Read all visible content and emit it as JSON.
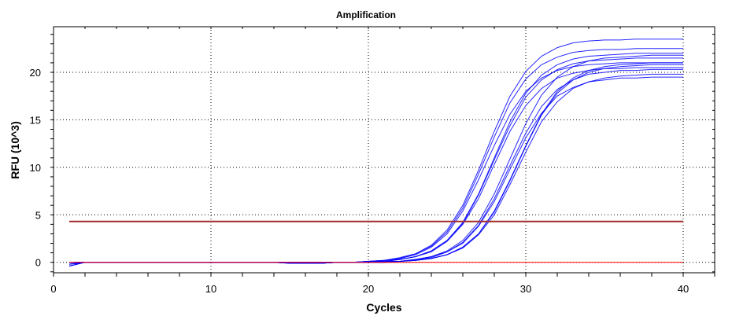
{
  "chart_data": {
    "type": "line",
    "title": "Amplification",
    "xlabel": "Cycles",
    "ylabel": "RFU (10^3)",
    "xlim": [
      0,
      42
    ],
    "ylim": [
      -1.1,
      24.8
    ],
    "xticks": [
      0,
      10,
      20,
      30,
      40
    ],
    "yticks": [
      0,
      5,
      10,
      15,
      20
    ],
    "grid": true,
    "legend": "none",
    "series_color": "#0000ff",
    "threshold": {
      "value": 4.3,
      "color": "#a52a2a"
    },
    "baseline": {
      "value": 0,
      "color": "#ff0000"
    },
    "x": [
      1,
      2,
      3,
      4,
      5,
      6,
      7,
      8,
      9,
      10,
      11,
      12,
      13,
      14,
      15,
      16,
      17,
      18,
      19,
      20,
      21,
      22,
      23,
      24,
      25,
      26,
      27,
      28,
      29,
      30,
      31,
      32,
      33,
      34,
      35,
      36,
      37,
      38,
      39,
      40
    ],
    "series": [
      {
        "values": [
          -0.4,
          0,
          0,
          0,
          0,
          0,
          0,
          0,
          0,
          0,
          0,
          0,
          0,
          0,
          -0.1,
          -0.1,
          -0.1,
          0,
          0,
          0.1,
          0.2,
          0.5,
          0.9,
          1.8,
          3.4,
          6.0,
          9.7,
          13.8,
          17.5,
          20.1,
          21.7,
          22.6,
          23.1,
          23.3,
          23.4,
          23.4,
          23.5,
          23.5,
          23.5,
          23.5
        ]
      },
      {
        "values": [
          0,
          0,
          0,
          0,
          0,
          0,
          0,
          0,
          0,
          0,
          0,
          0,
          0,
          0,
          0,
          0,
          0,
          0,
          0,
          0.1,
          0.2,
          0.4,
          0.9,
          1.7,
          3.2,
          5.7,
          9.3,
          13.2,
          16.8,
          19.3,
          20.8,
          21.6,
          22.1,
          22.3,
          22.4,
          22.4,
          22.5,
          22.5,
          22.5,
          22.5
        ]
      },
      {
        "values": [
          -0.2,
          0,
          0,
          0,
          0,
          0,
          0,
          0,
          0,
          0,
          0,
          0,
          0,
          0,
          0,
          -0.1,
          -0.1,
          0,
          0,
          0.1,
          0.1,
          0.3,
          0.6,
          1.2,
          2.3,
          4.1,
          7.1,
          10.8,
          14.4,
          17.4,
          19.2,
          20.3,
          20.9,
          21.2,
          21.3,
          21.4,
          21.5,
          21.5,
          21.5,
          21.5
        ]
      },
      {
        "values": [
          -0.4,
          0,
          0,
          0,
          0,
          0,
          0,
          0,
          0,
          0,
          0,
          0,
          0,
          0,
          -0.1,
          -0.1,
          -0.1,
          0,
          0,
          0.1,
          0.2,
          0.4,
          0.8,
          1.6,
          3.0,
          5.4,
          8.7,
          12.3,
          15.6,
          18.0,
          19.4,
          20.2,
          20.6,
          20.8,
          20.9,
          21.0,
          21.0,
          21.0,
          21.0,
          21.0
        ]
      },
      {
        "values": [
          0,
          0,
          0,
          0,
          0,
          0,
          0,
          0,
          0,
          0,
          0,
          0,
          0,
          0,
          0,
          0,
          0,
          0,
          0,
          0.1,
          0.1,
          0.3,
          0.6,
          1.1,
          2.2,
          4.0,
          6.7,
          10.3,
          13.8,
          16.5,
          18.3,
          19.4,
          19.9,
          20.2,
          20.4,
          20.4,
          20.5,
          20.5,
          20.5,
          20.5
        ]
      },
      {
        "values": [
          -0.2,
          0,
          0,
          0,
          0,
          0,
          0,
          0,
          0,
          0,
          0,
          0,
          0,
          0,
          0,
          -0.1,
          -0.1,
          0,
          0,
          0.1,
          0.1,
          0.3,
          0.6,
          1.2,
          2.3,
          4.2,
          7.2,
          11.0,
          14.8,
          17.8,
          19.7,
          20.8,
          21.4,
          21.7,
          21.8,
          21.9,
          22.0,
          22.0,
          22.0,
          22.0
        ]
      },
      {
        "values": [
          -0.4,
          0,
          0,
          0,
          0,
          0,
          0,
          0,
          0,
          0,
          0,
          0,
          0,
          0,
          -0.1,
          -0.1,
          -0.1,
          0,
          0,
          0,
          0.1,
          0.1,
          0.3,
          0.6,
          1.2,
          2.3,
          4.2,
          7.2,
          10.9,
          14.6,
          17.6,
          19.5,
          20.6,
          21.2,
          21.5,
          21.6,
          21.7,
          21.8,
          21.8,
          21.8
        ]
      },
      {
        "values": [
          0,
          0,
          0,
          0,
          0,
          0,
          0,
          0,
          0,
          0,
          0,
          0,
          0,
          0,
          0,
          0,
          0,
          0,
          0,
          0,
          0,
          0.1,
          0.2,
          0.4,
          0.8,
          1.6,
          3.0,
          5.4,
          8.7,
          12.3,
          15.6,
          18.0,
          19.4,
          20.2,
          20.6,
          20.8,
          20.9,
          21.0,
          21.0,
          21.0
        ]
      },
      {
        "values": [
          -0.2,
          0,
          0,
          0,
          0,
          0,
          0,
          0,
          0,
          0,
          0,
          0,
          0,
          0,
          0,
          -0.1,
          -0.1,
          0,
          0,
          0,
          0.1,
          0.1,
          0.3,
          0.6,
          1.1,
          2.1,
          3.9,
          6.7,
          10.2,
          13.6,
          16.4,
          18.2,
          19.2,
          19.8,
          20.0,
          20.2,
          20.2,
          20.3,
          20.3,
          20.3
        ]
      },
      {
        "values": [
          -0.4,
          0,
          0,
          0,
          0,
          0,
          0,
          0,
          0,
          0,
          0,
          0,
          0,
          0,
          -0.1,
          -0.1,
          -0.1,
          0,
          0,
          0,
          0,
          0.1,
          0.2,
          0.4,
          0.8,
          1.5,
          2.9,
          5.0,
          8.2,
          11.6,
          14.8,
          16.9,
          18.3,
          19.0,
          19.4,
          19.6,
          19.7,
          19.8,
          19.8,
          19.8
        ]
      },
      {
        "values": [
          0,
          0,
          0,
          0,
          0,
          0,
          0,
          0,
          0,
          0,
          0,
          0,
          0,
          0,
          0,
          0,
          0,
          0,
          0,
          0,
          0.1,
          0.1,
          0.3,
          0.5,
          1.1,
          2.0,
          3.8,
          6.4,
          9.8,
          13.1,
          15.7,
          17.5,
          18.4,
          19.0,
          19.2,
          19.4,
          19.4,
          19.5,
          19.5,
          19.5
        ]
      },
      {
        "values": [
          -0.2,
          0,
          0,
          0,
          0,
          0,
          0,
          0,
          0,
          0,
          0,
          0,
          0,
          0,
          0,
          -0.1,
          -0.1,
          0,
          0,
          0,
          0,
          0.1,
          0.2,
          0.4,
          0.8,
          1.6,
          3.0,
          5.3,
          8.6,
          12.2,
          15.5,
          17.8,
          19.2,
          20.0,
          20.4,
          20.6,
          20.7,
          20.8,
          20.8,
          20.8
        ]
      }
    ]
  }
}
